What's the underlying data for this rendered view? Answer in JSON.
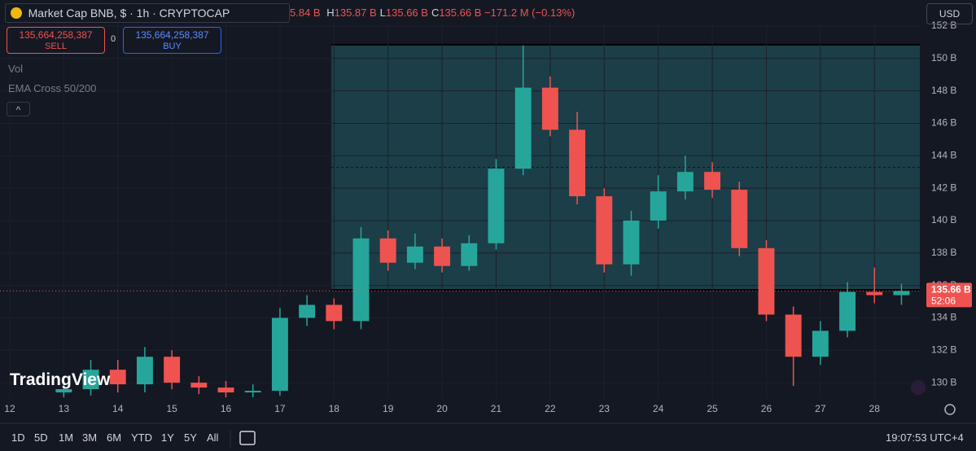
{
  "header": {
    "symbol": "Market Cap BNB, $ · 1h · CRYPTOCAP",
    "open_partial": "5.84 B",
    "ohlc": [
      {
        "key": "H",
        "value": "135.87 B"
      },
      {
        "key": "L",
        "value": "135.66 B"
      },
      {
        "key": "C",
        "value": "135.66 B"
      }
    ],
    "change": "−171.2 M (−0.13%)",
    "currency": "USD"
  },
  "trade": {
    "sell_price": "135,664,258,387",
    "sell": "SELL",
    "spread": "0",
    "buy_price": "135,664,258,387",
    "buy": "BUY"
  },
  "indicators": [
    "Vol",
    "EMA Cross 50/200"
  ],
  "logo": "TradingView",
  "toolbar": {
    "ranges": [
      "1D",
      "5D",
      "1M",
      "3M",
      "6M",
      "YTD",
      "1Y",
      "5Y",
      "All"
    ],
    "clock": "19:07:53 UTC+4"
  },
  "chart_data": {
    "type": "candlestick",
    "x": [
      13.0,
      13.5,
      14.0,
      14.5,
      15.0,
      15.5,
      16.0,
      16.5,
      17.0,
      17.5,
      18.0,
      18.5,
      19.0,
      19.5,
      20.0,
      20.5,
      21.0,
      21.5,
      22.0,
      22.5,
      23.0,
      23.5,
      24.0,
      24.5,
      25.0,
      25.5,
      26.0,
      26.5,
      27.0,
      27.5,
      28.0,
      28.5
    ],
    "open": [
      129.4,
      129.6,
      130.8,
      129.9,
      131.6,
      130.0,
      129.7,
      129.4,
      129.5,
      134.0,
      134.8,
      133.8,
      138.9,
      137.4,
      138.4,
      137.2,
      138.6,
      143.2,
      148.2,
      145.6,
      141.5,
      137.3,
      140.0,
      141.8,
      143.0,
      141.9,
      138.3,
      134.2,
      131.6,
      133.2,
      135.6,
      135.4
    ],
    "high": [
      130.2,
      131.4,
      131.4,
      132.2,
      132.0,
      130.4,
      130.1,
      129.9,
      134.6,
      135.4,
      135.2,
      139.6,
      139.4,
      139.2,
      138.9,
      139.1,
      143.8,
      150.8,
      148.9,
      146.7,
      142.0,
      140.6,
      142.8,
      144.0,
      143.6,
      142.4,
      138.8,
      134.7,
      133.8,
      136.2,
      137.1,
      136.1
    ],
    "low": [
      129.1,
      129.2,
      129.4,
      129.4,
      129.6,
      129.3,
      129.1,
      129.1,
      129.2,
      133.5,
      133.3,
      133.3,
      136.9,
      137.0,
      136.8,
      136.9,
      138.2,
      142.8,
      145.2,
      141.0,
      136.8,
      136.6,
      139.5,
      141.3,
      141.4,
      137.8,
      133.8,
      129.8,
      131.1,
      132.8,
      134.9,
      134.8
    ],
    "close": [
      129.6,
      130.8,
      129.9,
      131.6,
      130.0,
      129.7,
      129.4,
      129.5,
      134.0,
      134.8,
      133.8,
      138.9,
      137.4,
      138.4,
      137.2,
      138.6,
      143.2,
      148.2,
      145.6,
      141.5,
      137.3,
      140.0,
      141.8,
      143.0,
      141.9,
      138.3,
      134.2,
      131.6,
      133.2,
      135.6,
      135.4,
      135.66
    ],
    "up_color": "#26a69a",
    "down_color": "#ef5350",
    "xlim": [
      11.82,
      28.84
    ],
    "xticks": [
      12,
      13,
      14,
      15,
      16,
      17,
      18,
      19,
      20,
      21,
      22,
      23,
      24,
      25,
      26,
      27,
      28
    ],
    "ylim": [
      129,
      152.2
    ],
    "yticks": [
      {
        "value": 130,
        "label": "130 B"
      },
      {
        "value": 132,
        "label": "132 B"
      },
      {
        "value": 134,
        "label": "134 B"
      },
      {
        "value": 136,
        "label": "136 B"
      },
      {
        "value": 138,
        "label": "138 B"
      },
      {
        "value": 140,
        "label": "140 B"
      },
      {
        "value": 142,
        "label": "142 B"
      },
      {
        "value": 144,
        "label": "144 B"
      },
      {
        "value": 146,
        "label": "146 B"
      },
      {
        "value": 148,
        "label": "148 B"
      },
      {
        "value": 150,
        "label": "150 B"
      },
      {
        "value": 152,
        "label": "152 B"
      }
    ],
    "grid": true,
    "last_price": {
      "value": 135.66,
      "label": "135.66 B",
      "countdown": "52:06"
    },
    "rectangle": {
      "x": [
        17.95,
        28.84
      ],
      "y": [
        135.72,
        150.85
      ],
      "color": "#1d4b55"
    }
  }
}
